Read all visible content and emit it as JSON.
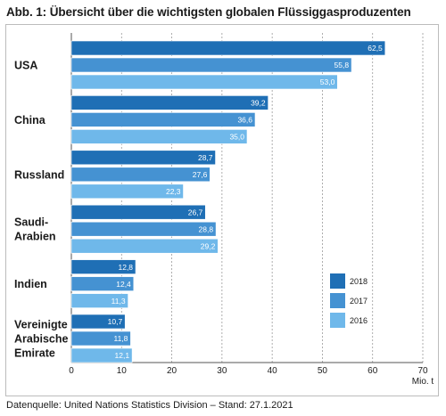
{
  "title": "Abb. 1: Übersicht über die wichtigsten globalen Flüssiggasproduzenten",
  "source": "Datenquelle: United Nations Statistics Division – Stand: 27.1.2021",
  "colors": {
    "2018": "#1f6fb5",
    "2017": "#4592d2",
    "2016": "#6fb8ea"
  },
  "chart_data": {
    "type": "bar",
    "orientation": "horizontal",
    "title": "Abb. 1: Übersicht über die wichtigsten globalen Flüssiggasproduzenten",
    "categories": [
      [
        "USA"
      ],
      [
        "China"
      ],
      [
        "Russland"
      ],
      [
        "Saudi-",
        "Arabien"
      ],
      [
        "Indien"
      ],
      [
        "Vereinigte",
        "Arabische",
        "Emirate"
      ]
    ],
    "series": [
      {
        "name": "2018",
        "color": "#1f6fb5",
        "values": [
          62.5,
          39.2,
          28.7,
          26.7,
          12.8,
          10.7
        ],
        "labels": [
          "62,5",
          "39,2",
          "28,7",
          "26,7",
          "12,8",
          "10,7"
        ]
      },
      {
        "name": "2017",
        "color": "#4592d2",
        "values": [
          55.8,
          36.6,
          27.6,
          28.8,
          12.4,
          11.8
        ],
        "labels": [
          "55,8",
          "36,6",
          "27,6",
          "28,8",
          "12,4",
          "11,8"
        ]
      },
      {
        "name": "2016",
        "color": "#6fb8ea",
        "values": [
          53.0,
          35.0,
          22.3,
          29.2,
          11.3,
          12.1
        ],
        "labels": [
          "53,0",
          "35,0",
          "22,3",
          "29,2",
          "11,3",
          "12,1"
        ]
      }
    ],
    "xlim": [
      0,
      70
    ],
    "xticks": [
      "0",
      "10",
      "20",
      "30",
      "40",
      "50",
      "60",
      "70"
    ],
    "xunit": "Mio. t",
    "grid": true,
    "legend": "bottom-right"
  }
}
